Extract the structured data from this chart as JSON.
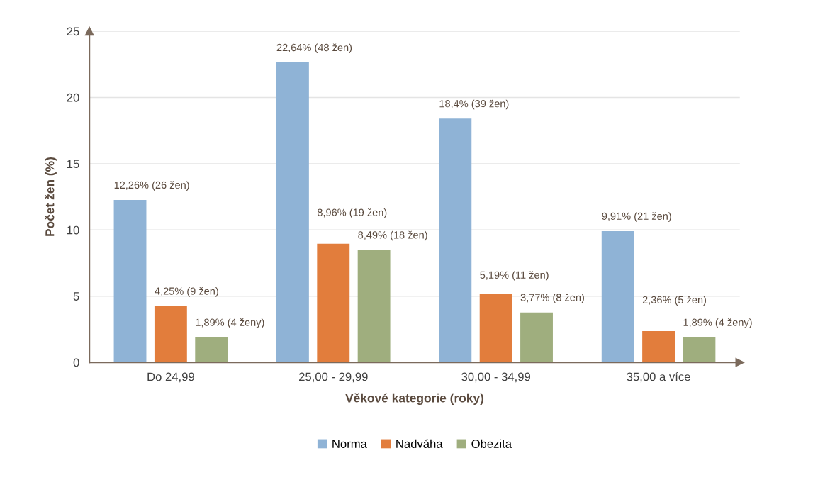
{
  "chart_data": {
    "type": "bar",
    "xlabel": "Věkové kategorie (roky)",
    "ylabel": "Počet žen (%)",
    "categories": [
      "Do 24,99",
      "25,00 - 29,99",
      "30,00 - 34,99",
      "35,00 a více"
    ],
    "series": [
      {
        "name": "Norma",
        "color": "#8fb3d6",
        "values": [
          12.26,
          22.64,
          18.4,
          9.91
        ],
        "value_labels": [
          "12,26% (26 žen)",
          "22,64% (48 žen)",
          "18,4% (39 žen)",
          "9,91% (21 žen)"
        ]
      },
      {
        "name": "Nadváha",
        "color": "#e27d3c",
        "values": [
          4.25,
          8.96,
          5.19,
          2.36
        ],
        "value_labels": [
          "4,25% (9 žen)",
          "8,96% (19 žen)",
          "5,19% (11 žen)",
          "2,36% (5 žen)"
        ]
      },
      {
        "name": "Obezita",
        "color": "#9fae7e",
        "values": [
          1.89,
          8.49,
          3.77,
          1.89
        ],
        "value_labels": [
          "1,89% (4 ženy)",
          "8,49% (18 žen)",
          "3,77% (8 žen)",
          "1,89% (4 ženy)"
        ]
      }
    ],
    "ylim": [
      0,
      25
    ],
    "yticks": [
      0,
      5,
      10,
      15,
      20,
      25
    ],
    "grid": "y",
    "legend": "bottom"
  }
}
